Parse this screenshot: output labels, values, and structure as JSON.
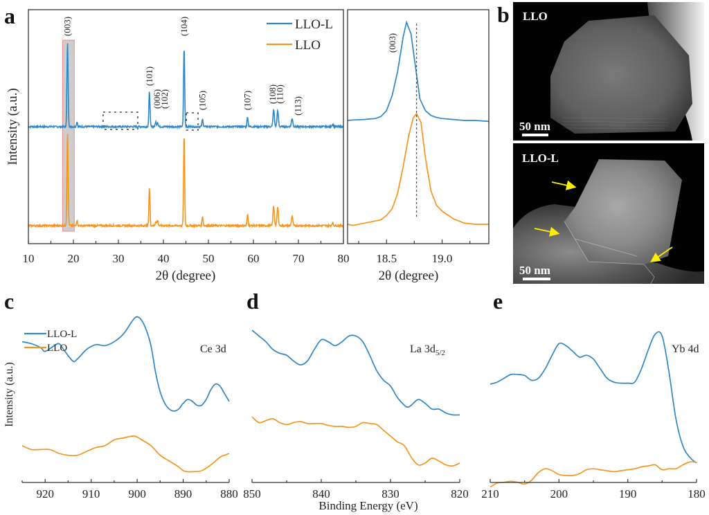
{
  "colors": {
    "LLO-L": "#2e86c8",
    "LLO": "#f7941d",
    "highlight_fill": "#c8c8c8",
    "highlight_border": "#ee8888",
    "arrow": "#ffee00"
  },
  "panel_labels": {
    "a": "a",
    "b": "b",
    "c": "c",
    "d": "d",
    "e": "e"
  },
  "chart_data": [
    {
      "id": "a-main",
      "type": "line",
      "title": "",
      "xlabel": "2θ (degree)",
      "ylabel": "Intensity (a.u.)",
      "xlim": [
        10,
        80
      ],
      "xticks": [
        10,
        20,
        30,
        40,
        50,
        60,
        70,
        80
      ],
      "legend": {
        "position": "top-right",
        "entries": [
          "LLO-L",
          "LLO"
        ]
      },
      "highlight_region": [
        17.6,
        20.2
      ],
      "dotted_boxes": [
        [
          26.6,
          34.3
        ],
        [
          45.1,
          47.7
        ]
      ],
      "peaks": [
        {
          "x": 18.7,
          "label": "(003)",
          "LLO-L": 1.0,
          "LLO": 1.0
        },
        {
          "x": 20.8,
          "label": "",
          "LLO-L": 0.06,
          "LLO": 0.06
        },
        {
          "x": 36.9,
          "label": "(101)",
          "LLO-L": 0.43,
          "LLO": 0.41
        },
        {
          "x": 38.3,
          "label": "(006)",
          "LLO-L": 0.06,
          "LLO": 0.05
        },
        {
          "x": 38.7,
          "label": "(102)",
          "LLO-L": 0.05,
          "LLO": 0.06
        },
        {
          "x": 44.6,
          "label": "(104)",
          "LLO-L": 0.95,
          "LLO": 0.99
        },
        {
          "x": 48.7,
          "label": "(105)",
          "LLO-L": 0.09,
          "LLO": 0.1
        },
        {
          "x": 58.7,
          "label": "(107)",
          "LLO-L": 0.12,
          "LLO": 0.12
        },
        {
          "x": 64.5,
          "label": "(108)",
          "LLO-L": 0.2,
          "LLO": 0.21
        },
        {
          "x": 65.4,
          "label": "(110)",
          "LLO-L": 0.19,
          "LLO": 0.2
        },
        {
          "x": 68.6,
          "label": "(113)",
          "LLO-L": 0.1,
          "LLO": 0.1
        },
        {
          "x": 77.6,
          "label": "",
          "LLO-L": 0.03,
          "LLO": 0.03
        }
      ],
      "series": [
        {
          "name": "LLO-L",
          "baseline": 0.62
        },
        {
          "name": "LLO",
          "baseline": 0.0
        }
      ]
    },
    {
      "id": "a-zoom",
      "type": "line",
      "xlabel": "2θ (degree)",
      "xlim": [
        18.15,
        19.42
      ],
      "xticks": [
        18.5,
        19.0
      ],
      "tick_labels": [
        "18.5",
        "19.0"
      ],
      "annotation": "(003)",
      "reference_line_x": 18.77,
      "series": [
        {
          "name": "LLO-L",
          "x": [
            18.15,
            18.2,
            18.3,
            18.4,
            18.45,
            18.5,
            18.55,
            18.6,
            18.65,
            18.68,
            18.72,
            18.76,
            18.8,
            18.85,
            18.9,
            18.95,
            19.0,
            19.1,
            19.2,
            19.3,
            19.42
          ],
          "y": [
            0.0,
            0.005,
            0.01,
            0.02,
            0.04,
            0.1,
            0.25,
            0.5,
            0.85,
            1.0,
            0.88,
            0.55,
            0.22,
            0.1,
            0.05,
            0.03,
            0.02,
            0.01,
            0.0,
            0.0,
            -0.01
          ]
        },
        {
          "name": "LLO",
          "x": [
            18.15,
            18.2,
            18.3,
            18.4,
            18.45,
            18.5,
            18.55,
            18.6,
            18.65,
            18.7,
            18.74,
            18.77,
            18.81,
            18.85,
            18.9,
            18.95,
            19.0,
            19.1,
            19.2,
            19.3,
            19.42
          ],
          "y": [
            0.0,
            -0.01,
            0.01,
            0.03,
            0.04,
            0.08,
            0.14,
            0.28,
            0.52,
            0.8,
            0.96,
            1.0,
            0.92,
            0.6,
            0.3,
            0.17,
            0.12,
            0.05,
            0.01,
            0.0,
            0.0
          ]
        }
      ]
    },
    {
      "id": "c",
      "type": "line",
      "label": "Ce 3d",
      "xlabel": "",
      "ylabel": "Intensity (a.u.)",
      "xlim": [
        925,
        880
      ],
      "xticks": [
        920,
        910,
        900,
        890,
        880
      ],
      "legend": {
        "position": "top-left",
        "entries": [
          "LLO-L",
          "LLO"
        ]
      },
      "series": [
        {
          "name": "LLO-L",
          "x": [
            925,
            923,
            921,
            920,
            918,
            917,
            916,
            914,
            913,
            911,
            909,
            907,
            905,
            903,
            901,
            900,
            899,
            898,
            897,
            896,
            895,
            894,
            893,
            892,
            891,
            890,
            889,
            888,
            887,
            886,
            885,
            884,
            883,
            882,
            881,
            880
          ],
          "y": [
            0.76,
            0.75,
            0.73,
            0.71,
            0.74,
            0.75,
            0.72,
            0.66,
            0.67,
            0.72,
            0.745,
            0.74,
            0.76,
            0.8,
            0.87,
            0.89,
            0.87,
            0.82,
            0.74,
            0.6,
            0.5,
            0.44,
            0.41,
            0.4,
            0.41,
            0.44,
            0.46,
            0.45,
            0.43,
            0.43,
            0.46,
            0.51,
            0.54,
            0.53,
            0.49,
            0.45
          ]
        },
        {
          "name": "LLO",
          "x": [
            925,
            923,
            921,
            919,
            917,
            915,
            913,
            911,
            909,
            907,
            905,
            903,
            901,
            900,
            899,
            897,
            895,
            893,
            891,
            890,
            889,
            888,
            886,
            884,
            882,
            881,
            880
          ],
          "y": [
            0.22,
            0.2,
            0.2,
            0.2,
            0.18,
            0.17,
            0.17,
            0.19,
            0.21,
            0.22,
            0.25,
            0.26,
            0.27,
            0.265,
            0.25,
            0.22,
            0.17,
            0.14,
            0.11,
            0.09,
            0.085,
            0.085,
            0.09,
            0.12,
            0.16,
            0.17,
            0.18
          ]
        }
      ]
    },
    {
      "id": "d",
      "type": "line",
      "label_main": "La 3d",
      "label_sub": "5/2",
      "xlabel": "Binding Energy (eV)",
      "xlim": [
        850,
        820
      ],
      "xticks": [
        850,
        840,
        830,
        820
      ],
      "series": [
        {
          "name": "LLO-L",
          "x": [
            850,
            849,
            848,
            847,
            846,
            845,
            844,
            843,
            842,
            841,
            840,
            839,
            838,
            837,
            836,
            835,
            834,
            833,
            832,
            831,
            830,
            829,
            828,
            827.5,
            827,
            826,
            825,
            824,
            823,
            822,
            821,
            820
          ],
          "y": [
            0.82,
            0.79,
            0.76,
            0.72,
            0.7,
            0.69,
            0.66,
            0.64,
            0.66,
            0.72,
            0.77,
            0.76,
            0.74,
            0.76,
            0.79,
            0.79,
            0.76,
            0.69,
            0.61,
            0.56,
            0.53,
            0.47,
            0.43,
            0.42,
            0.43,
            0.46,
            0.44,
            0.41,
            0.41,
            0.39,
            0.38,
            0.38
          ]
        },
        {
          "name": "LLO",
          "x": [
            850,
            849,
            848,
            847,
            846,
            845,
            844,
            843,
            842,
            841,
            840,
            839,
            838,
            837,
            836,
            835,
            834,
            833,
            832,
            831,
            830,
            829,
            828,
            827,
            826,
            825,
            824,
            823,
            822,
            821,
            820
          ],
          "y": [
            0.37,
            0.34,
            0.35,
            0.36,
            0.34,
            0.33,
            0.34,
            0.345,
            0.335,
            0.335,
            0.335,
            0.325,
            0.32,
            0.32,
            0.315,
            0.32,
            0.34,
            0.335,
            0.33,
            0.3,
            0.27,
            0.24,
            0.22,
            0.16,
            0.12,
            0.13,
            0.155,
            0.14,
            0.12,
            0.115,
            0.13
          ]
        }
      ]
    },
    {
      "id": "e",
      "type": "line",
      "label": "Yb 4d",
      "xlim": [
        210,
        180
      ],
      "xticks": [
        210,
        200,
        190,
        180
      ],
      "series": [
        {
          "name": "LLO-L",
          "x": [
            210,
            209,
            208,
            207,
            206,
            205,
            204,
            203,
            202,
            201,
            200,
            199,
            198,
            197,
            196,
            195,
            194,
            193,
            192,
            191,
            190,
            189,
            188,
            187,
            186,
            185,
            184,
            183,
            182,
            181,
            180
          ],
          "y": [
            0.54,
            0.55,
            0.57,
            0.59,
            0.59,
            0.585,
            0.56,
            0.57,
            0.62,
            0.69,
            0.75,
            0.74,
            0.71,
            0.68,
            0.69,
            0.67,
            0.62,
            0.57,
            0.55,
            0.545,
            0.545,
            0.55,
            0.62,
            0.72,
            0.8,
            0.79,
            0.6,
            0.36,
            0.22,
            0.16,
            0.13
          ]
        },
        {
          "name": "LLO",
          "x": [
            210,
            209,
            208,
            207,
            206,
            205,
            204,
            203,
            202,
            201,
            200,
            199,
            198,
            197,
            196,
            195,
            194,
            193,
            192,
            191,
            190,
            189,
            188,
            187,
            186,
            185,
            184,
            183,
            182,
            181,
            180
          ],
          "y": [
            0.005,
            0.025,
            0.03,
            0.035,
            0.03,
            0.02,
            0.04,
            0.08,
            0.1,
            0.09,
            0.07,
            0.065,
            0.065,
            0.075,
            0.095,
            0.1,
            0.095,
            0.09,
            0.085,
            0.09,
            0.095,
            0.1,
            0.11,
            0.115,
            0.12,
            0.095,
            0.1,
            0.1,
            0.12,
            0.135,
            0.135
          ]
        }
      ]
    }
  ],
  "tem": {
    "top": {
      "label": "LLO",
      "scalebar": "50 nm"
    },
    "bottom": {
      "label": "LLO-L",
      "scalebar": "50 nm",
      "arrows": 3
    }
  }
}
